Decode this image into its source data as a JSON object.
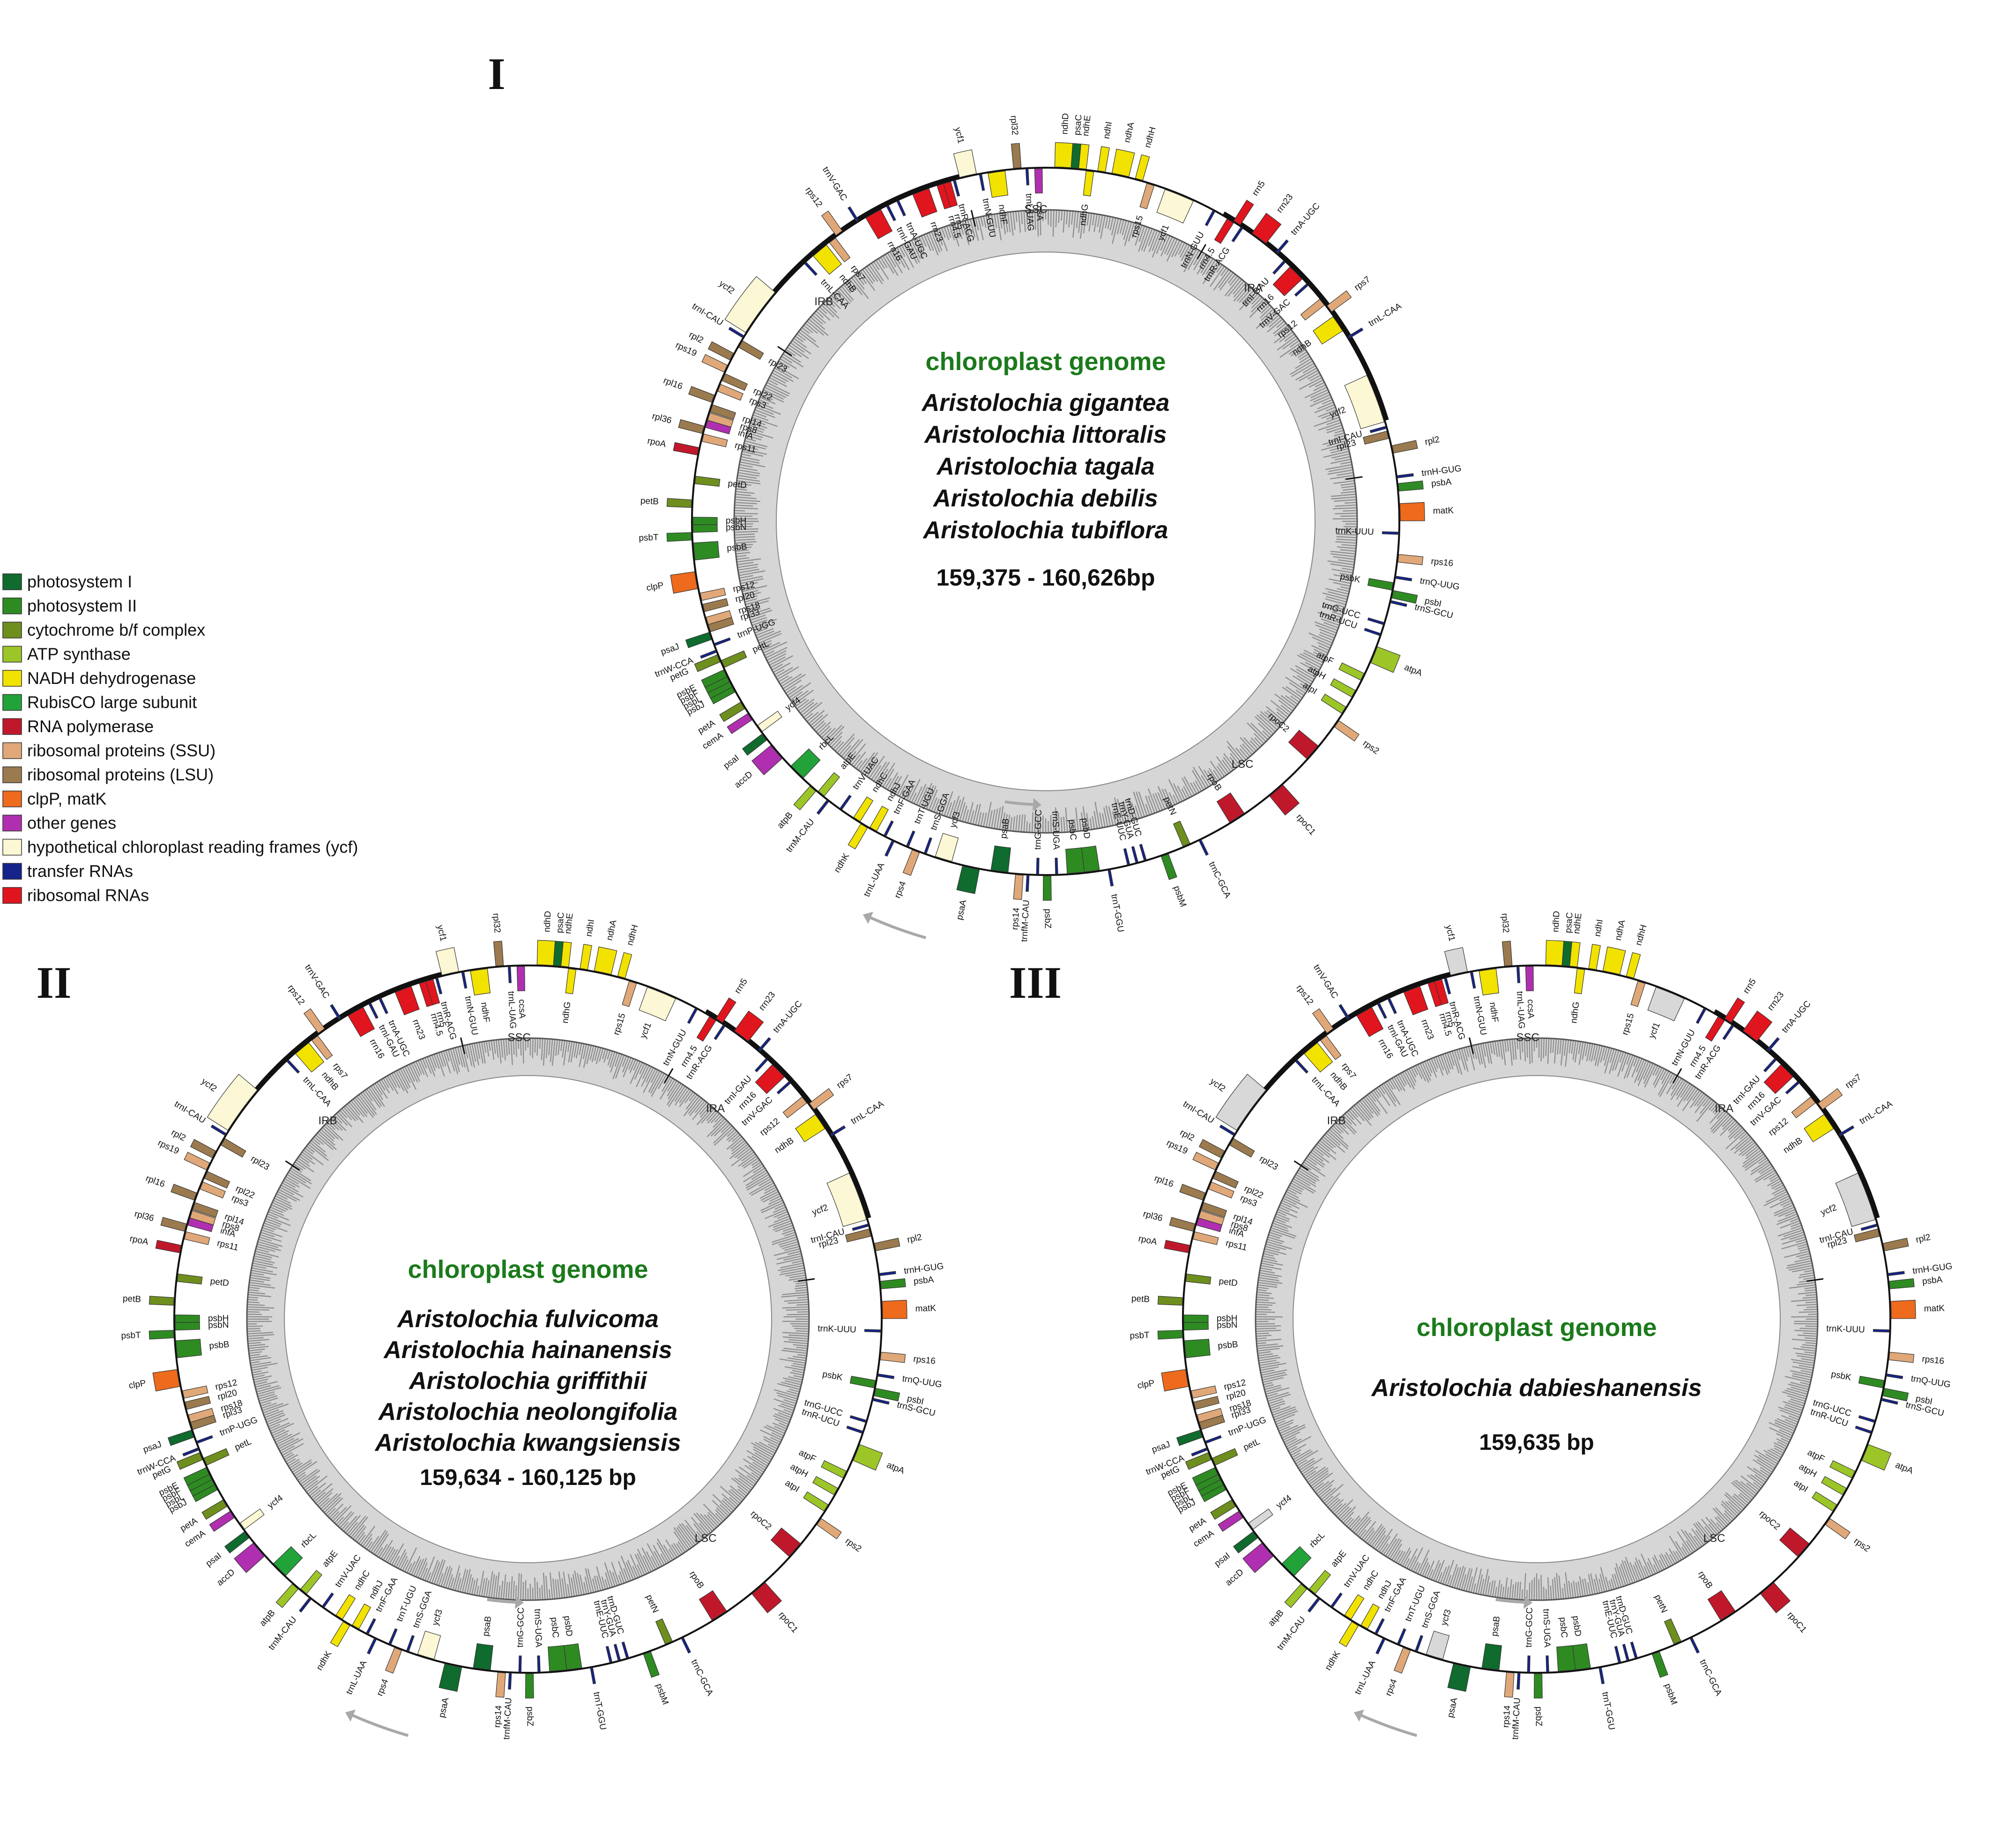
{
  "legend": [
    {
      "key": "psI",
      "label": "photosystem I",
      "color": "#0f6b2e"
    },
    {
      "key": "psII",
      "label": "photosystem II",
      "color": "#2e8b22"
    },
    {
      "key": "cytb",
      "label": "cytochrome b/f complex",
      "color": "#6e8e1e"
    },
    {
      "key": "atp",
      "label": "ATP synthase",
      "color": "#9cc528"
    },
    {
      "key": "ndh",
      "label": "NADH dehydrogenase",
      "color": "#f2e200"
    },
    {
      "key": "rbcL",
      "label": "RubisCO large subunit",
      "color": "#22a33a"
    },
    {
      "key": "rpo",
      "label": "RNA polymerase",
      "color": "#c0182b"
    },
    {
      "key": "ssu",
      "label": "ribosomal proteins (SSU)",
      "color": "#e0a878"
    },
    {
      "key": "lsu",
      "label": "ribosomal proteins (LSU)",
      "color": "#9a7a4e"
    },
    {
      "key": "clp",
      "label": "clpP, matK",
      "color": "#ee6a1c"
    },
    {
      "key": "other",
      "label": "other genes",
      "color": "#b02fb0"
    },
    {
      "key": "ycf",
      "label": "hypothetical chloroplast reading frames (ycf)",
      "color": "#fcf7d4"
    },
    {
      "key": "trna",
      "label": "transfer RNAs",
      "color": "#15238a"
    },
    {
      "key": "rrna",
      "label": "ribosomal RNAs",
      "color": "#e1151e"
    }
  ],
  "maps": [
    {
      "roman": "I",
      "title": "chloroplast genome",
      "species": [
        "Aristolochia gigantea",
        "Aristolochia littoralis",
        "Aristolochia tagala",
        "Aristolochia debilis",
        "Aristolochia tubiflora"
      ],
      "size": "159,375 - 160,626bp",
      "ycf_color": "#fcf7d4"
    },
    {
      "roman": "II",
      "title": "chloroplast genome",
      "species": [
        "Aristolochia fulvicoma",
        "Aristolochia hainanensis",
        "Aristolochia griffithii",
        "Aristolochia neolongifolia",
        "Aristolochia kwangsiensis"
      ],
      "size": "159,634 - 160,125 bp",
      "ycf_color": "#fcf7d4"
    },
    {
      "roman": "III",
      "title": "chloroplast genome",
      "species": [
        "Aristolochia dabieshanensis"
      ],
      "size": "159,635 bp",
      "ycf_color": "#d8d8d8"
    }
  ],
  "regions": [
    "LSC",
    "IRA",
    "SSC",
    "IRB"
  ],
  "genes": [
    {
      "name": "trnH-GUG",
      "cat": "trna",
      "at": 0.5
    },
    {
      "name": "psbA",
      "cat": "psII",
      "at": 1.6
    },
    {
      "name": "matK",
      "cat": "clp",
      "at": 4.2
    },
    {
      "name": "trnK-UUU",
      "cat": "trna",
      "at": 6.4
    },
    {
      "name": "rps16",
      "cat": "ssu",
      "at": 9.0
    },
    {
      "name": "trnQ-UUG",
      "cat": "trna",
      "at": 11.0
    },
    {
      "name": "psbK",
      "cat": "psII",
      "at": 12.0
    },
    {
      "name": "psbI",
      "cat": "psII",
      "at": 12.8
    },
    {
      "name": "trnS-GCU",
      "cat": "trna",
      "at": 13.6
    },
    {
      "name": "trnG-UCC",
      "cat": "trna",
      "at": 16.0
    },
    {
      "name": "trnR-UCU",
      "cat": "trna",
      "at": 17.2
    },
    {
      "name": "atpA",
      "cat": "atp",
      "at": 19.4
    },
    {
      "name": "atpF",
      "cat": "atp",
      "at": 22.0
    },
    {
      "name": "atpH",
      "cat": "atp",
      "at": 24.0
    },
    {
      "name": "atpI",
      "cat": "atp",
      "at": 26.0
    },
    {
      "name": "rps2",
      "cat": "ssu",
      "at": 27.6
    },
    {
      "name": "rpoC2",
      "cat": "rpo",
      "at": 31.5
    },
    {
      "name": "rpoC1",
      "cat": "rpo",
      "at": 37.0
    },
    {
      "name": "rpoB",
      "cat": "rpo",
      "at": 42.0
    },
    {
      "name": "trnC-GCA",
      "cat": "trna",
      "at": 46.5
    },
    {
      "name": "petN",
      "cat": "cytb",
      "at": 48.0
    },
    {
      "name": "psbM",
      "cat": "psII",
      "at": 50.5
    },
    {
      "name": "trnD-GUC",
      "cat": "trna",
      "at": 52.6
    },
    {
      "name": "trnY-GUA",
      "cat": "trna",
      "at": 53.5
    },
    {
      "name": "trnE-UUC",
      "cat": "trna",
      "at": 54.4
    },
    {
      "name": "trnT-GGU",
      "cat": "trna",
      "at": 56.5
    },
    {
      "name": "psbD",
      "cat": "psII",
      "at": 58.4
    },
    {
      "name": "psbC",
      "cat": "psII",
      "at": 60.0
    },
    {
      "name": "trnS-UGA",
      "cat": "trna",
      "at": 62.0
    },
    {
      "name": "psbZ",
      "cat": "psII",
      "at": 63.0
    },
    {
      "name": "trnG-GCC",
      "cat": "trna",
      "at": 64.0
    },
    {
      "name": "trnfM-CAU",
      "cat": "trna",
      "at": 65.0
    },
    {
      "name": "rps14",
      "cat": "ssu",
      "at": 65.9
    },
    {
      "name": "psaB",
      "cat": "psI",
      "at": 68.0
    },
    {
      "name": "psaA",
      "cat": "psI",
      "at": 71.0
    },
    {
      "name": "ycf3",
      "cat": "ycf",
      "at": 74.0
    },
    {
      "name": "trnS-GGA",
      "cat": "trna",
      "at": 76.0
    },
    {
      "name": "rps4",
      "cat": "ssu",
      "at": 77.0
    },
    {
      "name": "trnT-UGU",
      "cat": "trna",
      "at": 78.0
    },
    {
      "name": "trnL-UAA",
      "cat": "trna",
      "at": 79.6
    },
    {
      "name": "trnF-GAA",
      "cat": "trna",
      "at": 80.6
    },
    {
      "name": "ndhJ",
      "cat": "ndh",
      "at": 82.0
    },
    {
      "name": "ndhK",
      "cat": "ndh",
      "at": 83.0
    },
    {
      "name": "ndhC",
      "cat": "ndh",
      "at": 84.0
    },
    {
      "name": "trnV-UAC",
      "cat": "trna",
      "at": 86.0
    },
    {
      "name": "trnM-CAU",
      "cat": "trna",
      "at": 87.6
    },
    {
      "name": "atpE",
      "cat": "atp",
      "at": 88.6
    },
    {
      "name": "atpB",
      "cat": "atp",
      "at": 89.6
    },
    {
      "name": "rbcL",
      "cat": "rbcL",
      "at": 92.0
    },
    {
      "name": "accD",
      "cat": "other",
      "at": 95.0
    },
    {
      "name": "psaI",
      "cat": "psI",
      "at": 97.0
    },
    {
      "name": "ycf4",
      "cat": "ycf",
      "at": 98.0
    },
    {
      "name": "cemA",
      "cat": "other",
      "at": 99.6
    },
    {
      "name": "petA",
      "cat": "cytb",
      "at": 101.0
    },
    {
      "name": "psbJ",
      "cat": "psII",
      "at": 103.0
    },
    {
      "name": "psbL",
      "cat": "psII",
      "at": 103.6
    },
    {
      "name": "psbF",
      "cat": "psII",
      "at": 104.2
    },
    {
      "name": "psbE",
      "cat": "psII",
      "at": 104.8
    },
    {
      "name": "petL",
      "cat": "cytb",
      "at": 105.8
    },
    {
      "name": "petG",
      "cat": "cytb",
      "at": 106.5
    },
    {
      "name": "trnW-CCA",
      "cat": "trna",
      "at": 107.3
    },
    {
      "name": "trnP-UGG",
      "cat": "trna",
      "at": 108.0
    },
    {
      "name": "psaJ",
      "cat": "psI",
      "at": 109.0
    },
    {
      "name": "rpl33",
      "cat": "lsu",
      "at": 109.8
    },
    {
      "name": "rps18",
      "cat": "ssu",
      "at": 110.6
    },
    {
      "name": "rpl20",
      "cat": "lsu",
      "at": 112.0
    },
    {
      "name": "rps12",
      "cat": "ssu",
      "at": 113.2
    },
    {
      "name": "clpP",
      "cat": "clp",
      "at": 115.0
    },
    {
      "name": "psbB",
      "cat": "psII",
      "at": 118.0
    },
    {
      "name": "psbT",
      "cat": "psII",
      "at": 119.6
    },
    {
      "name": "psbN",
      "cat": "psII",
      "at": 120.4
    },
    {
      "name": "psbH",
      "cat": "psII",
      "at": 121.2
    },
    {
      "name": "petB",
      "cat": "cytb",
      "at": 123.0
    },
    {
      "name": "petD",
      "cat": "cytb",
      "at": 125.5
    },
    {
      "name": "rpoA",
      "cat": "rpo",
      "at": 128.5
    },
    {
      "name": "rps11",
      "cat": "ssu",
      "at": 130.0
    },
    {
      "name": "rpl36",
      "cat": "lsu",
      "at": 130.8
    },
    {
      "name": "infA",
      "cat": "other",
      "at": 131.5
    },
    {
      "name": "rps8",
      "cat": "ssu",
      "at": 132.3
    },
    {
      "name": "rpl14",
      "cat": "lsu",
      "at": 133.2
    },
    {
      "name": "rpl16",
      "cat": "lsu",
      "at": 134.2
    },
    {
      "name": "rps3",
      "cat": "ssu",
      "at": 135.5
    },
    {
      "name": "rpl22",
      "cat": "lsu",
      "at": 136.7
    },
    {
      "name": "rps19",
      "cat": "ssu",
      "at": 137.6
    },
    {
      "name": "rpl2",
      "cat": "lsu",
      "at": 139.0
    },
    {
      "name": "rpl23",
      "cat": "lsu",
      "at": 140.6
    },
    {
      "name": "trnI-CAU",
      "cat": "trna",
      "at": 141.4
    },
    {
      "name": "ycf2",
      "cat": "ycf",
      "at": 144.5
    },
    {
      "name": "trnL-CAA",
      "cat": "trna",
      "at": 151.5
    },
    {
      "name": "ndhB",
      "cat": "ndh",
      "at": 153.5
    },
    {
      "name": "rps7",
      "cat": "ssu",
      "at": 155.2
    },
    {
      "name": "rps12",
      "cat": "ssu",
      "at": 156.2
    },
    {
      "name": "trnV-GAC",
      "cat": "trna",
      "at": 158.5
    },
    {
      "name": "rrn16",
      "cat": "rrna",
      "at": 160.3
    },
    {
      "name": "trnI-GAU",
      "cat": "trna",
      "at": 162.0
    },
    {
      "name": "trnA-UGC",
      "cat": "trna",
      "at": 163.2
    },
    {
      "name": "rrn23",
      "cat": "rrna",
      "at": 165.8
    },
    {
      "name": "rrn4.5",
      "cat": "rrna",
      "at": 168.0
    },
    {
      "name": "rrn5",
      "cat": "rrna",
      "at": 168.7
    },
    {
      "name": "trnR-ACG",
      "cat": "trna",
      "at": 169.5
    },
    {
      "name": "ycf1",
      "cat": "ycf",
      "at": 171.0
    },
    {
      "name": "trnN-GUU",
      "cat": "trna",
      "at": 172.3
    },
    {
      "name": "ndhF",
      "cat": "ndh",
      "at": 174.0
    },
    {
      "name": "rpl32",
      "cat": "lsu",
      "at": 176.2
    },
    {
      "name": "trnL-UAG",
      "cat": "trna",
      "at": 177.2
    },
    {
      "name": "ccsA",
      "cat": "other",
      "at": 178.4
    },
    {
      "name": "ndhD",
      "cat": "ndh",
      "at": 181.0
    },
    {
      "name": "psaC",
      "cat": "psI",
      "at": 182.2
    },
    {
      "name": "ndhE",
      "cat": "ndh",
      "at": 183.0
    },
    {
      "name": "ndhG",
      "cat": "ndh",
      "at": 183.8
    },
    {
      "name": "ndhI",
      "cat": "ndh",
      "at": 185.0
    },
    {
      "name": "ndhA",
      "cat": "ndh",
      "at": 187.0
    },
    {
      "name": "ndhH",
      "cat": "ndh",
      "at": 189.0
    },
    {
      "name": "rps15",
      "cat": "ssu",
      "at": 190.3
    },
    {
      "name": "ycf1",
      "cat": "ycf",
      "at": 193.5
    },
    {
      "name": "trnN-GUU",
      "cat": "trna",
      "at": 197.5
    },
    {
      "name": "rrn4.5",
      "cat": "rrna",
      "at": 199.5
    },
    {
      "name": "rrn5",
      "cat": "rrna",
      "at": 200.2
    },
    {
      "name": "trnR-ACG",
      "cat": "trna",
      "at": 200.9
    },
    {
      "name": "rrn23",
      "cat": "rrna",
      "at": 203.0
    },
    {
      "name": "trnA-UGC",
      "cat": "trna",
      "at": 205.4
    },
    {
      "name": "trnI-GAU",
      "cat": "trna",
      "at": 206.6
    },
    {
      "name": "rrn16",
      "cat": "rrna",
      "at": 208.3
    },
    {
      "name": "trnV-GAC",
      "cat": "trna",
      "at": 210.0
    },
    {
      "name": "rps12",
      "cat": "ssu",
      "at": 212.4
    },
    {
      "name": "rps7",
      "cat": "ssu",
      "at": 213.4
    },
    {
      "name": "ndhB",
      "cat": "ndh",
      "at": 215.2
    },
    {
      "name": "trnL-CAA",
      "cat": "trna",
      "at": 217.0
    },
    {
      "name": "ycf2",
      "cat": "ycf",
      "at": 224.0
    },
    {
      "name": "trnI-CAU",
      "cat": "trna",
      "at": 227.2
    },
    {
      "name": "rpl23",
      "cat": "lsu",
      "at": 228.0
    },
    {
      "name": "rpl2",
      "cat": "lsu",
      "at": 229.6
    }
  ]
}
